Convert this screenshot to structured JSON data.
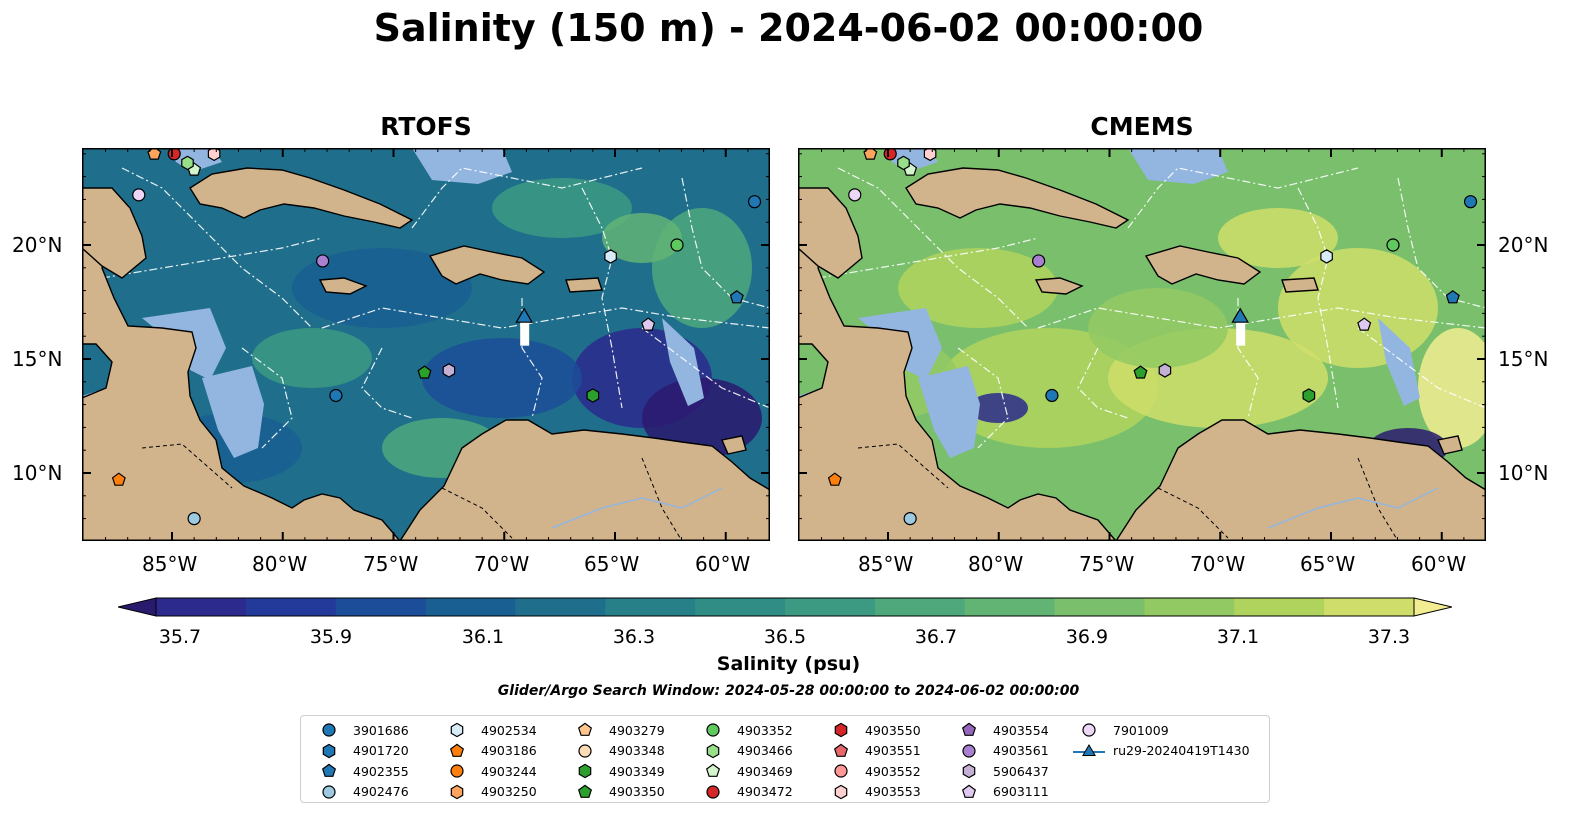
{
  "suptitle": "Salinity (150 m) - 2024-06-02 00:00:00",
  "panels": [
    {
      "title": "RTOFS",
      "palette": "low"
    },
    {
      "title": "CMEMS",
      "palette": "high"
    }
  ],
  "x_ticks": [
    "85°W",
    "80°W",
    "75°W",
    "70°W",
    "65°W",
    "60°W"
  ],
  "y_ticks": [
    "20°N",
    "15°N",
    "10°N"
  ],
  "colorbar": {
    "ticks": [
      "35.7",
      "35.9",
      "36.1",
      "36.3",
      "36.5",
      "36.7",
      "36.9",
      "37.1",
      "37.3"
    ],
    "label": "Salinity (psu)",
    "colors": [
      "#2a1a6e",
      "#2c2a8c",
      "#233a9a",
      "#1c4d98",
      "#195f92",
      "#1f6f8c",
      "#277f88",
      "#2f8d86",
      "#3c9a82",
      "#4ea87c",
      "#62b475",
      "#79bf6c",
      "#93c963",
      "#b0d35e",
      "#cfde6a",
      "#f2ec92"
    ]
  },
  "search_window": "Glider/Argo Search Window: 2024-05-28 00:00:00 to 2024-06-02 00:00:00",
  "legend": [
    {
      "label": "3901686",
      "marker": "circle",
      "color": "#1f77b4"
    },
    {
      "label": "4901720",
      "marker": "hexagon",
      "color": "#1f77b4"
    },
    {
      "label": "4902355",
      "marker": "pentagon",
      "color": "#1f77b4"
    },
    {
      "label": "4902476",
      "marker": "circle",
      "color": "#9ecae1"
    },
    {
      "label": "4902534",
      "marker": "hexagon",
      "color": "#d7ecf7"
    },
    {
      "label": "4903186",
      "marker": "pentagon",
      "color": "#ff7f0e"
    },
    {
      "label": "4903244",
      "marker": "circle",
      "color": "#ff7f0e"
    },
    {
      "label": "4903250",
      "marker": "hexagon",
      "color": "#ffa45c"
    },
    {
      "label": "4903279",
      "marker": "pentagon",
      "color": "#ffc58f"
    },
    {
      "label": "4903348",
      "marker": "circle",
      "color": "#ffdcb8"
    },
    {
      "label": "4903349",
      "marker": "hexagon",
      "color": "#2ca02c"
    },
    {
      "label": "4903350",
      "marker": "pentagon",
      "color": "#2ca02c"
    },
    {
      "label": "4903352",
      "marker": "circle",
      "color": "#5fc95f"
    },
    {
      "label": "4903466",
      "marker": "hexagon",
      "color": "#98df8a"
    },
    {
      "label": "4903469",
      "marker": "pentagon",
      "color": "#d4f5cc"
    },
    {
      "label": "4903472",
      "marker": "circle",
      "color": "#d62728"
    },
    {
      "label": "4903550",
      "marker": "hexagon",
      "color": "#d62728"
    },
    {
      "label": "4903551",
      "marker": "pentagon",
      "color": "#e8676a"
    },
    {
      "label": "4903552",
      "marker": "circle",
      "color": "#ff9896"
    },
    {
      "label": "4903553",
      "marker": "hexagon",
      "color": "#ffd0cf"
    },
    {
      "label": "4903554",
      "marker": "pentagon",
      "color": "#9467bd"
    },
    {
      "label": "4903561",
      "marker": "circle",
      "color": "#a97fd0"
    },
    {
      "label": "5906437",
      "marker": "hexagon",
      "color": "#c5b0d5"
    },
    {
      "label": "6903111",
      "marker": "pentagon",
      "color": "#e0c9f0"
    },
    {
      "label": "7901009",
      "marker": "circle",
      "color": "#ecd7f7"
    },
    {
      "label": "ru29-20240419T1430",
      "marker": "triangle",
      "color": "#1f77b4"
    }
  ]
}
